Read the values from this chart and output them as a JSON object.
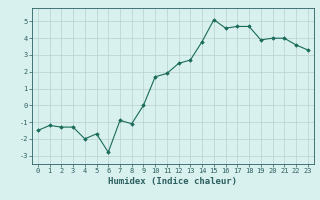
{
  "x": [
    0,
    1,
    2,
    3,
    4,
    5,
    6,
    7,
    8,
    9,
    10,
    11,
    12,
    13,
    14,
    15,
    16,
    17,
    18,
    19,
    20,
    21,
    22,
    23
  ],
  "y": [
    -1.5,
    -1.2,
    -1.3,
    -1.3,
    -2.0,
    -1.7,
    -2.8,
    -0.9,
    -1.1,
    0.0,
    1.7,
    1.9,
    2.5,
    2.7,
    3.8,
    5.1,
    4.6,
    4.7,
    4.7,
    3.9,
    4.0,
    4.0,
    3.6,
    3.3
  ],
  "line_color": "#1a6b5a",
  "marker": "D",
  "markersize": 1.8,
  "linewidth": 0.8,
  "xlabel": "Humidex (Indice chaleur)",
  "ylabel": "",
  "title": "",
  "xlim": [
    -0.5,
    23.5
  ],
  "ylim": [
    -3.5,
    5.8
  ],
  "yticks": [
    -3,
    -2,
    -1,
    0,
    1,
    2,
    3,
    4,
    5
  ],
  "xticks": [
    0,
    1,
    2,
    3,
    4,
    5,
    6,
    7,
    8,
    9,
    10,
    11,
    12,
    13,
    14,
    15,
    16,
    17,
    18,
    19,
    20,
    21,
    22,
    23
  ],
  "bg_color": "#d8f0ee",
  "grid_color": "#b8d0ce",
  "tick_label_fontsize": 5.0,
  "xlabel_fontsize": 6.5,
  "tick_color": "#2d6060",
  "axis_color": "#2d6060"
}
